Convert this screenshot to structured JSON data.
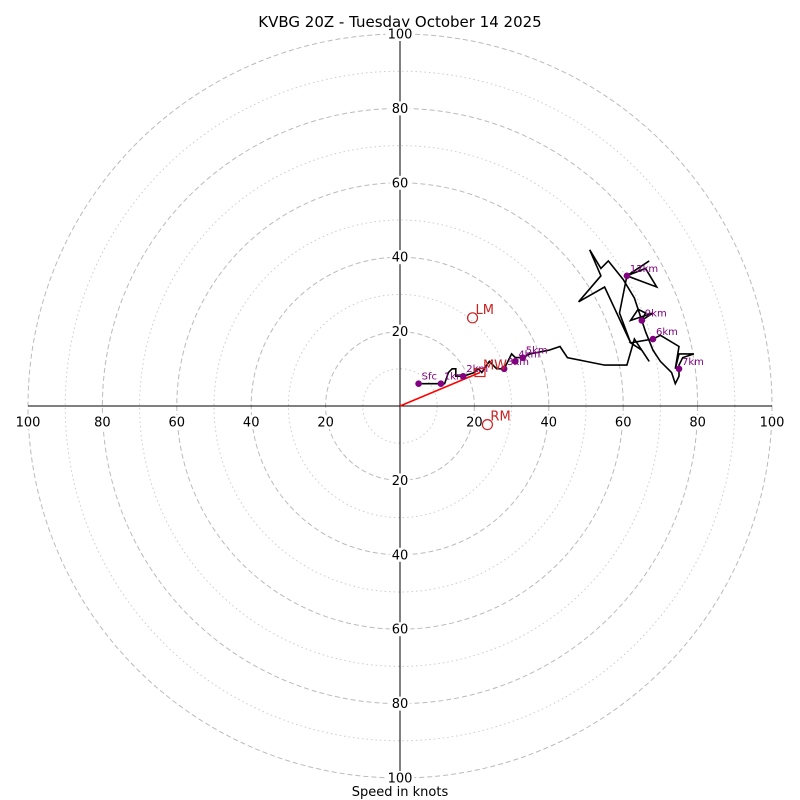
{
  "chart_data": {
    "type": "hodograph",
    "title": "KVBG 20Z - Tuesday October 14 2025",
    "xlabel": "Speed in knots",
    "units": "knots",
    "range": [
      -100,
      100
    ],
    "rings_major": [
      20,
      40,
      60,
      80,
      100
    ],
    "rings_minor": [
      10,
      30,
      50,
      70,
      90
    ],
    "tick_values": [
      20,
      40,
      60,
      80,
      100
    ],
    "tick_labels": [
      "20",
      "40",
      "60",
      "80",
      "100"
    ],
    "trace": [
      [
        5,
        6
      ],
      [
        8,
        6
      ],
      [
        11,
        6
      ],
      [
        12,
        6
      ],
      [
        13,
        9
      ],
      [
        14,
        10
      ],
      [
        15,
        10
      ],
      [
        15,
        8
      ],
      [
        17,
        8
      ],
      [
        20,
        9
      ],
      [
        21,
        10
      ],
      [
        22,
        9
      ],
      [
        24,
        12
      ],
      [
        26,
        10
      ],
      [
        27,
        10
      ],
      [
        28,
        10
      ],
      [
        29,
        12
      ],
      [
        30,
        14
      ],
      [
        31,
        13
      ],
      [
        33,
        13
      ],
      [
        35,
        14
      ],
      [
        40,
        15
      ],
      [
        43,
        16
      ],
      [
        45,
        13
      ],
      [
        50,
        12
      ],
      [
        55,
        11
      ],
      [
        61,
        11
      ],
      [
        63,
        18
      ],
      [
        67,
        12
      ],
      [
        65,
        15
      ],
      [
        62,
        17
      ],
      [
        68,
        18
      ],
      [
        70,
        19
      ],
      [
        75,
        16
      ],
      [
        74,
        10
      ],
      [
        75,
        14
      ],
      [
        79,
        14
      ],
      [
        76,
        13
      ],
      [
        75,
        11
      ],
      [
        75,
        8
      ],
      [
        74,
        6
      ],
      [
        73,
        9
      ],
      [
        70,
        12
      ],
      [
        68,
        15
      ],
      [
        66,
        20
      ],
      [
        65,
        23
      ],
      [
        66,
        25
      ],
      [
        64,
        26
      ],
      [
        62,
        23
      ],
      [
        68,
        25
      ],
      [
        65,
        23
      ],
      [
        64,
        26
      ],
      [
        63,
        29
      ],
      [
        60,
        34
      ],
      [
        56,
        39
      ],
      [
        54,
        37
      ],
      [
        51,
        42
      ],
      [
        54,
        35
      ],
      [
        48,
        28
      ],
      [
        55,
        32
      ],
      [
        62,
        17
      ],
      [
        59,
        25
      ],
      [
        61,
        35
      ],
      [
        67,
        39
      ],
      [
        61,
        35
      ],
      [
        69,
        32
      ],
      [
        66,
        37
      ],
      [
        61,
        35
      ]
    ],
    "height_markers": [
      {
        "label": "Sfc",
        "u": 5,
        "v": 6
      },
      {
        "label": "1km",
        "u": 11,
        "v": 6
      },
      {
        "label": "2km",
        "u": 17,
        "v": 8
      },
      {
        "label": "3km",
        "u": 28,
        "v": 10
      },
      {
        "label": "4km",
        "u": 31,
        "v": 12
      },
      {
        "label": "5km",
        "u": 33,
        "v": 13
      },
      {
        "label": "6km",
        "u": 68,
        "v": 18
      },
      {
        "label": "7km",
        "u": 75,
        "v": 10
      },
      {
        "label": "9km",
        "u": 65,
        "v": 23
      },
      {
        "label": "12km",
        "u": 61,
        "v": 35
      }
    ],
    "motion_points": [
      {
        "label": "LM",
        "u": 19.5,
        "v": 23.7
      },
      {
        "label": "RM",
        "u": 23.5,
        "v": -5.0
      }
    ],
    "mean_wind": {
      "label": "MW",
      "u": 21.5,
      "v": 9.0
    },
    "shear_vector": {
      "u": 21.5,
      "v": 9.0
    },
    "colors": {
      "trace": "#000000",
      "height_marker": "#800080",
      "motion": "#cc2222",
      "shear": "#ff0000",
      "grid": "#bbbbbb",
      "axis": "#000000"
    }
  }
}
